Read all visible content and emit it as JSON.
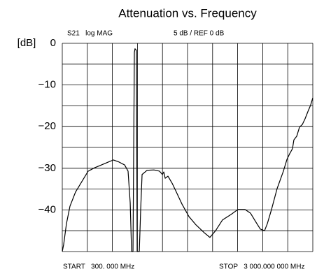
{
  "chart_data": {
    "type": "line",
    "title": "Attenuation vs. Frequency",
    "y_label": "[dB]",
    "annotations": [
      "S21   log MAG",
      "5 dB / REF 0 dB"
    ],
    "start_label": "START   300. 000 MHz",
    "stop_label": "STOP   3 000.000 000 MHz",
    "xlim": [
      300,
      3000
    ],
    "xgrid": [
      300,
      570,
      840,
      1110,
      1380,
      1650,
      1920,
      2190,
      2460,
      2730,
      3000
    ],
    "ylim": [
      -50,
      0
    ],
    "yticks": [
      0,
      {
        "value": -10,
        "label": "−10"
      },
      {
        "value": -20,
        "label": "−20"
      },
      {
        "value": -30,
        "label": "−30"
      },
      {
        "value": -40,
        "label": "−40"
      }
    ],
    "minor_yticks": [
      -5,
      -15,
      -25,
      -35,
      -45,
      -50
    ],
    "grid": true,
    "series": [
      {
        "name": "S21",
        "color": "#000000",
        "x": [
          300,
          315,
          345,
          383,
          443,
          519,
          579,
          647,
          722,
          798,
          851,
          911,
          972,
          1009,
          1032,
          1047,
          1062,
          1077,
          1084,
          1099,
          1107,
          1130,
          1145,
          1160,
          1213,
          1288,
          1348,
          1379,
          1394,
          1409,
          1439,
          1484,
          1529,
          1590,
          1665,
          1741,
          1831,
          1891,
          1952,
          2027,
          2118,
          2193,
          2269,
          2329,
          2389,
          2434,
          2480,
          2510,
          2555,
          2615,
          2683,
          2721,
          2751,
          2781,
          2796,
          2827,
          2857,
          2887,
          2917,
          2947,
          2977,
          3000
        ],
        "values": [
          -50,
          -48.3,
          -43.3,
          -39.1,
          -35.7,
          -32.9,
          -30.7,
          -29.9,
          -29.2,
          -28.5,
          -28.0,
          -28.5,
          -29.2,
          -30.7,
          -38.3,
          -50,
          -50,
          -2.2,
          -1.3,
          -1.7,
          -50,
          -50,
          -39.9,
          -31.5,
          -30.5,
          -30.4,
          -30.7,
          -31.5,
          -30.9,
          -32.4,
          -31.9,
          -33.6,
          -35.7,
          -38.6,
          -41.6,
          -43.6,
          -45.5,
          -46.6,
          -45.0,
          -42.4,
          -41.1,
          -39.9,
          -39.9,
          -40.8,
          -43.0,
          -44.6,
          -45.0,
          -43.3,
          -39.9,
          -34.9,
          -30.7,
          -27.9,
          -26.5,
          -25.3,
          -23.2,
          -22.3,
          -20.1,
          -19.5,
          -18.1,
          -16.4,
          -14.8,
          -13.1
        ]
      }
    ]
  }
}
